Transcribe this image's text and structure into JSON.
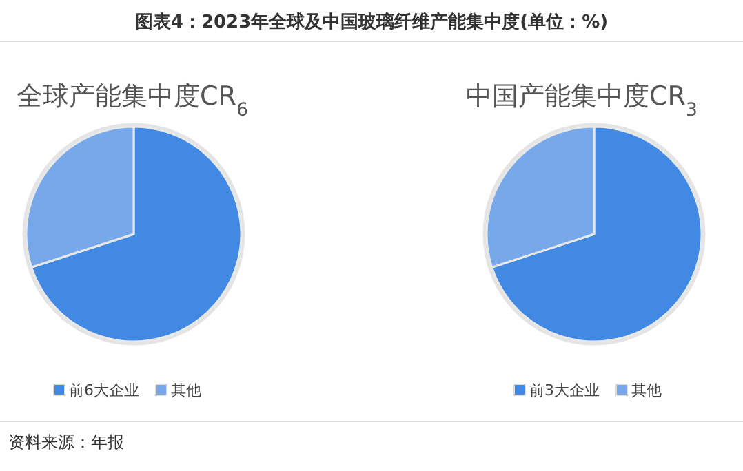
{
  "chart_data": [
    {
      "type": "pie",
      "title": "全球产能集中度CR$_{6}$",
      "categories": [
        "前6大企业",
        "其他"
      ],
      "values": [
        70,
        30
      ],
      "colors": [
        "#4289e3",
        "#76a8ea"
      ],
      "legend": "bottom",
      "annotations": [
        "图表4：2023年全球及中国玻璃纤维产能集中度(单位：%)"
      ]
    },
    {
      "type": "pie",
      "title": "中国产能集中度CR$_{3}$",
      "categories": [
        "前3大企业",
        "其他"
      ],
      "values": [
        70,
        30
      ],
      "colors": [
        "#4289e3",
        "#76a8ea"
      ],
      "legend": "bottom",
      "annotations": [
        "资料来源：年报"
      ]
    }
  ]
}
